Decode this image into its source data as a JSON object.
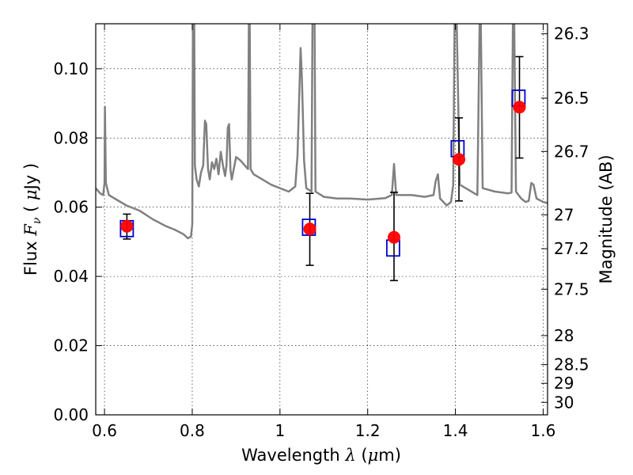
{
  "chart_data": {
    "type": "scatter",
    "xlabel": "Wavelength",
    "xlabel_symbol": "λ",
    "xlabel_unit_prefix": "(",
    "xlabel_unit_mu": "μ",
    "xlabel_unit_suffix": "m)",
    "ylabel": "Flux",
    "ylabel_symbol": "F",
    "ylabel_subscript": "ν",
    "ylabel_unit_open": "(",
    "ylabel_unit_mu": "μ",
    "ylabel_unit_rest": "Jy )",
    "y2label": "Magnitude (AB)",
    "xlim": [
      0.58,
      1.61
    ],
    "ylim": [
      0.0,
      0.113
    ],
    "x_ticks": [
      0.6,
      0.8,
      1.0,
      1.2,
      1.4,
      1.6
    ],
    "x_tick_labels": [
      "0.6",
      "0.8",
      "1",
      "1.2",
      "1.4",
      "1.6"
    ],
    "y_ticks": [
      0.0,
      0.02,
      0.04,
      0.06,
      0.08,
      0.1
    ],
    "y_tick_labels": [
      "0.00",
      "0.02",
      "0.04",
      "0.06",
      "0.08",
      "0.10"
    ],
    "y2_ticks": [
      {
        "label": "26.3",
        "flux": 0.1101
      },
      {
        "label": "26.5",
        "flux": 0.0915
      },
      {
        "label": "26.7",
        "flux": 0.0761
      },
      {
        "label": "27",
        "flux": 0.0578
      },
      {
        "label": "27.2",
        "flux": 0.048
      },
      {
        "label": "27.5",
        "flux": 0.0363
      },
      {
        "label": "28",
        "flux": 0.0229
      },
      {
        "label": "28.5",
        "flux": 0.0145
      },
      {
        "label": "29",
        "flux": 0.0091
      },
      {
        "label": "30",
        "flux": 0.0036
      }
    ],
    "grid": true,
    "colors": {
      "spectrum": "#808080",
      "observed": "#ff0000",
      "model": "#0000cc",
      "errorbar": "#000000"
    },
    "series": [
      {
        "kind": "line",
        "points": [
          [
            0.58,
            0.0655
          ],
          [
            0.59,
            0.064
          ],
          [
            0.597,
            0.0635
          ],
          [
            0.6,
            0.067
          ],
          [
            0.601,
            0.089
          ],
          [
            0.603,
            0.067
          ],
          [
            0.61,
            0.0635
          ],
          [
            0.63,
            0.062
          ],
          [
            0.65,
            0.0605
          ],
          [
            0.68,
            0.059
          ],
          [
            0.71,
            0.0565
          ],
          [
            0.74,
            0.0545
          ],
          [
            0.76,
            0.0535
          ],
          [
            0.78,
            0.0522
          ],
          [
            0.79,
            0.051
          ],
          [
            0.797,
            0.0515
          ],
          [
            0.8,
            0.055
          ],
          [
            0.8015,
            0.113
          ],
          [
            0.8045,
            0.113
          ],
          [
            0.806,
            0.072
          ],
          [
            0.81,
            0.068
          ],
          [
            0.815,
            0.066
          ],
          [
            0.82,
            0.07
          ],
          [
            0.825,
            0.072
          ],
          [
            0.829,
            0.085
          ],
          [
            0.832,
            0.084
          ],
          [
            0.836,
            0.071
          ],
          [
            0.84,
            0.068
          ],
          [
            0.845,
            0.073
          ],
          [
            0.85,
            0.071
          ],
          [
            0.855,
            0.074
          ],
          [
            0.86,
            0.0695
          ],
          [
            0.865,
            0.076
          ],
          [
            0.87,
            0.072
          ],
          [
            0.875,
            0.069
          ],
          [
            0.878,
            0.072
          ],
          [
            0.881,
            0.083
          ],
          [
            0.884,
            0.084
          ],
          [
            0.887,
            0.071
          ],
          [
            0.89,
            0.068
          ],
          [
            0.9,
            0.0745
          ],
          [
            0.91,
            0.0735
          ],
          [
            0.92,
            0.072
          ],
          [
            0.927,
            0.071
          ],
          [
            0.929,
            0.113
          ],
          [
            0.931,
            0.113
          ],
          [
            0.933,
            0.071
          ],
          [
            0.94,
            0.0695
          ],
          [
            0.96,
            0.068
          ],
          [
            0.98,
            0.0665
          ],
          [
            1.0,
            0.0655
          ],
          [
            1.02,
            0.0645
          ],
          [
            1.035,
            0.066
          ],
          [
            1.04,
            0.075
          ],
          [
            1.045,
            0.097
          ],
          [
            1.047,
            0.106
          ],
          [
            1.05,
            0.097
          ],
          [
            1.055,
            0.0735
          ],
          [
            1.06,
            0.0655
          ],
          [
            1.072,
            0.0645
          ],
          [
            1.074,
            0.113
          ],
          [
            1.079,
            0.113
          ],
          [
            1.081,
            0.0645
          ],
          [
            1.1,
            0.063
          ],
          [
            1.13,
            0.0625
          ],
          [
            1.16,
            0.0625
          ],
          [
            1.2,
            0.0622
          ],
          [
            1.24,
            0.0626
          ],
          [
            1.255,
            0.0635
          ],
          [
            1.26,
            0.0725
          ],
          [
            1.265,
            0.0635
          ],
          [
            1.3,
            0.0635
          ],
          [
            1.33,
            0.063
          ],
          [
            1.35,
            0.0635
          ],
          [
            1.355,
            0.0675
          ],
          [
            1.36,
            0.0695
          ],
          [
            1.365,
            0.0625
          ],
          [
            1.38,
            0.0605
          ],
          [
            1.39,
            0.0615
          ],
          [
            1.395,
            0.0665
          ],
          [
            1.398,
            0.113
          ],
          [
            1.403,
            0.113
          ],
          [
            1.41,
            0.0665
          ],
          [
            1.43,
            0.065
          ],
          [
            1.45,
            0.0635
          ],
          [
            1.455,
            0.113
          ],
          [
            1.458,
            0.113
          ],
          [
            1.462,
            0.0655
          ],
          [
            1.49,
            0.0645
          ],
          [
            1.52,
            0.064
          ],
          [
            1.528,
            0.0642
          ],
          [
            1.531,
            0.113
          ],
          [
            1.534,
            0.113
          ],
          [
            1.538,
            0.0645
          ],
          [
            1.55,
            0.0625
          ],
          [
            1.56,
            0.0615
          ],
          [
            1.567,
            0.0618
          ],
          [
            1.573,
            0.067
          ],
          [
            1.578,
            0.0665
          ],
          [
            1.585,
            0.0625
          ],
          [
            1.6,
            0.0615
          ],
          [
            1.61,
            0.0612
          ]
        ]
      },
      {
        "kind": "points",
        "marker": "circle",
        "points": [
          {
            "x": 0.651,
            "y": 0.0545,
            "err": [
              0.0508,
              0.058
            ]
          },
          {
            "x": 1.068,
            "y": 0.0537,
            "err": [
              0.0432,
              0.064
            ]
          },
          {
            "x": 1.26,
            "y": 0.0513,
            "err": [
              0.0388,
              0.0643
            ]
          },
          {
            "x": 1.408,
            "y": 0.0738,
            "err": [
              0.0618,
              0.0858
            ]
          },
          {
            "x": 1.546,
            "y": 0.0889,
            "err": [
              0.0742,
              0.1035
            ]
          }
        ]
      },
      {
        "kind": "points",
        "marker": "open-square",
        "points": [
          {
            "x": 0.651,
            "y": 0.0538
          },
          {
            "x": 1.066,
            "y": 0.0542
          },
          {
            "x": 1.258,
            "y": 0.0482
          },
          {
            "x": 1.405,
            "y": 0.0769
          },
          {
            "x": 1.544,
            "y": 0.0915
          }
        ]
      }
    ]
  }
}
